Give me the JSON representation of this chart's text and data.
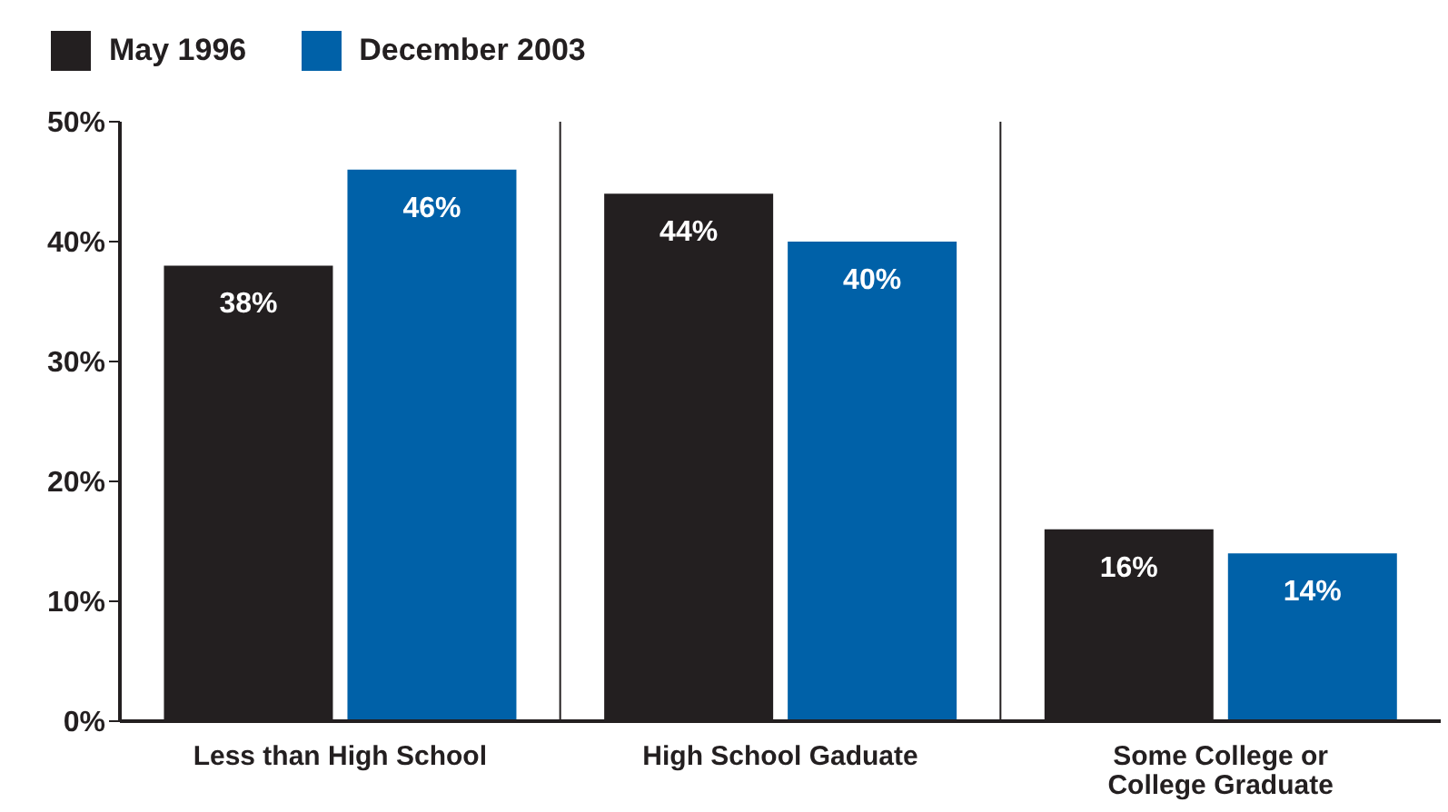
{
  "chart_data": {
    "type": "bar",
    "categories": [
      "Less than High School",
      "High School Gaduate",
      "Some College or College Graduate"
    ],
    "series": [
      {
        "name": "May 1996",
        "color": "#231f20",
        "values": [
          38,
          44,
          16
        ],
        "value_labels": [
          "38%",
          "44%",
          "16%"
        ]
      },
      {
        "name": "December 2003",
        "color": "#0061a8",
        "values": [
          46,
          40,
          14
        ],
        "value_labels": [
          "46%",
          "40%",
          "14%"
        ]
      }
    ],
    "ylim": [
      0,
      50
    ],
    "yticks": [
      {
        "value": 0,
        "label": "0%"
      },
      {
        "value": 10,
        "label": "10%"
      },
      {
        "value": 20,
        "label": "20%"
      },
      {
        "value": 30,
        "label": "30%"
      },
      {
        "value": 40,
        "label": "40%"
      },
      {
        "value": 50,
        "label": "50%"
      }
    ],
    "grid": "x",
    "legend": "top left"
  }
}
